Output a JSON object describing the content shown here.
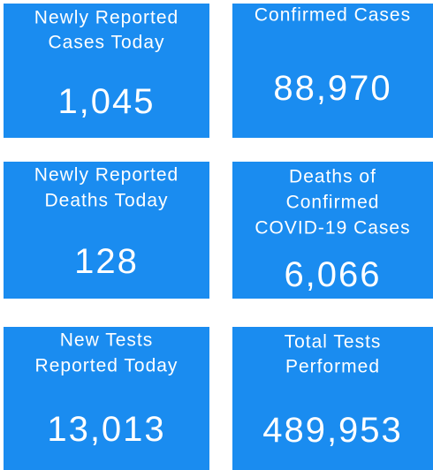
{
  "tiles": [
    {
      "title": [
        "Newly Reported",
        "Cases Today"
      ],
      "value": "1,045"
    },
    {
      "title": [
        "Confirmed Cases"
      ],
      "value": "88,970"
    },
    {
      "title": [
        "Newly Reported",
        "Deaths Today"
      ],
      "value": "128"
    },
    {
      "title": [
        "Deaths of",
        "Confirmed",
        "COVID-19 Cases"
      ],
      "value": "6,066"
    },
    {
      "title": [
        "New Tests",
        "Reported Today"
      ],
      "value": "13,013"
    },
    {
      "title": [
        "Total Tests",
        "Performed"
      ],
      "value": "489,953"
    }
  ]
}
